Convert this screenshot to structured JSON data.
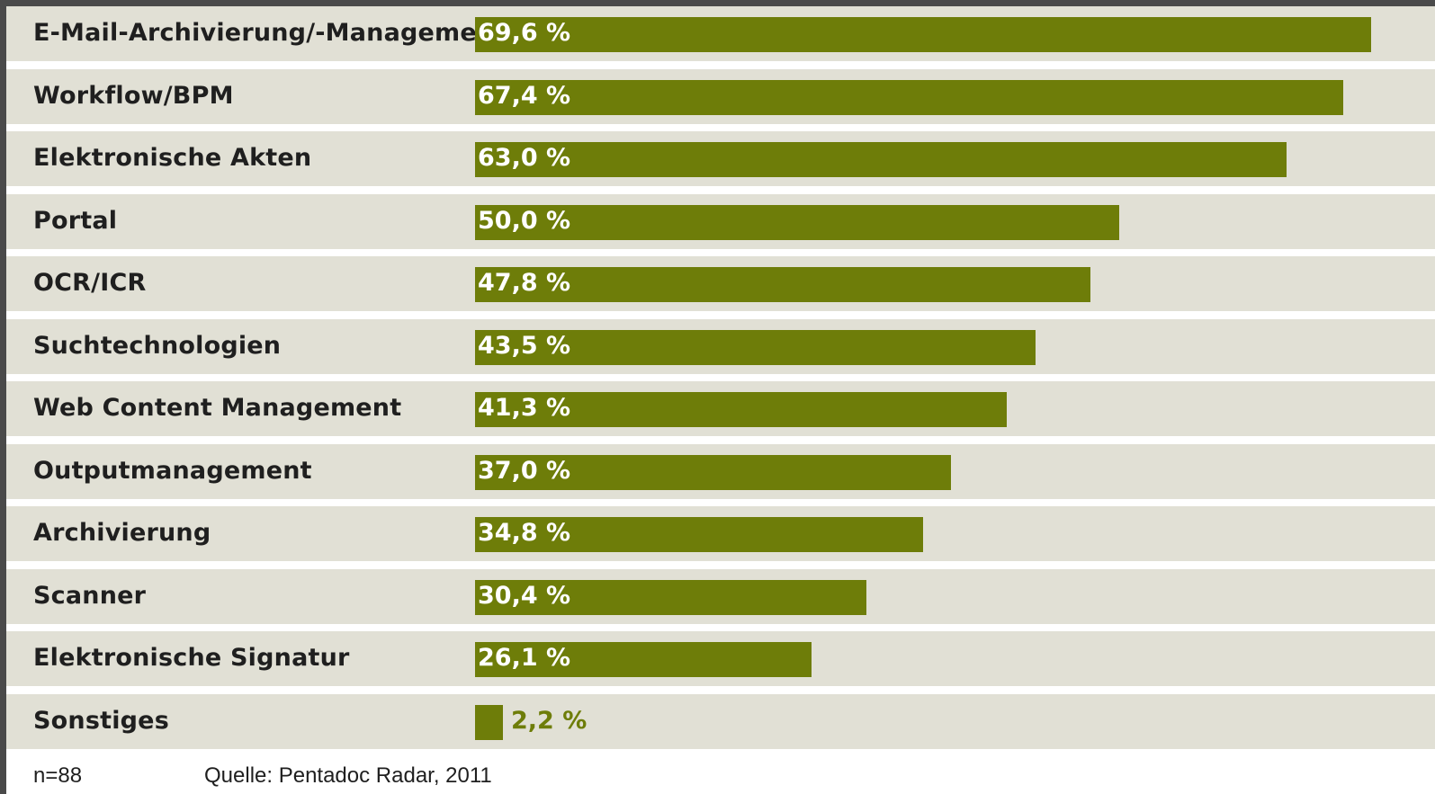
{
  "chart_data": {
    "type": "bar",
    "orientation": "horizontal",
    "categories": [
      "E-Mail-Archivierung/-Management",
      "Workflow/BPM",
      "Elektronische Akten",
      "Portal",
      "OCR/ICR",
      "Suchtechnologien",
      "Web Content Management",
      "Outputmanagement",
      "Archivierung",
      "Scanner",
      "Elektronische Signatur",
      "Sonstiges"
    ],
    "values": [
      69.6,
      67.4,
      63.0,
      50.0,
      47.8,
      43.5,
      41.3,
      37.0,
      34.8,
      30.4,
      26.1,
      2.2
    ],
    "value_labels": [
      "69,6 %",
      "67,4 %",
      "63,0 %",
      "50,0 %",
      "47,8 %",
      "43,5 %",
      "41,3 %",
      "37,0 %",
      "34,8 %",
      "30,4 %",
      "26,1 %",
      "2,2 %"
    ],
    "unit": "%",
    "xlim": [
      0,
      70
    ],
    "grid": false,
    "legend": "none",
    "colors": {
      "bar": "#6e7d09",
      "row_background": "#e1e0d5",
      "label_text": "#1f1f1f",
      "value_inside": "#ffffff",
      "value_outside": "#6e7d09"
    }
  },
  "footer": {
    "sample_size": "n=88",
    "source": "Quelle: Pentadoc Radar, 2011"
  }
}
